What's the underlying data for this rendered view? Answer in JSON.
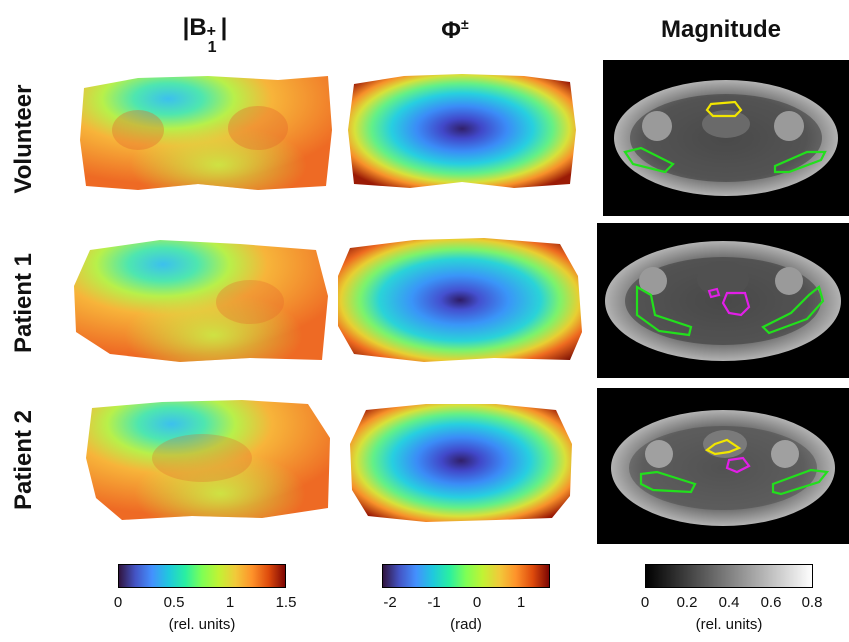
{
  "columns": {
    "b1": {
      "base": "|B",
      "sup": "+",
      "sub": "1",
      "close": "|"
    },
    "phase": {
      "base": "Φ",
      "sup": "±"
    },
    "magnitude": "Magnitude"
  },
  "rows": [
    "Volunteer",
    "Patient 1",
    "Patient 2"
  ],
  "colorbars": {
    "b1": {
      "ticks": [
        "0",
        "0.5",
        "1",
        "1.5"
      ],
      "unit": "(rel. units)",
      "colormap": "turbo"
    },
    "phase": {
      "ticks": [
        "-2",
        "-1",
        "0",
        "1"
      ],
      "unit": "(rad)",
      "colormap": "turbo"
    },
    "magnitude": {
      "ticks": [
        "0",
        "0.2",
        "0.4",
        "0.6",
        "0.8"
      ],
      "unit": "(rel. units)",
      "colormap": "gray"
    }
  },
  "contour_colors": {
    "green": "#22e01c",
    "yellow": "#f2e600",
    "magenta": "#e21ee8"
  }
}
